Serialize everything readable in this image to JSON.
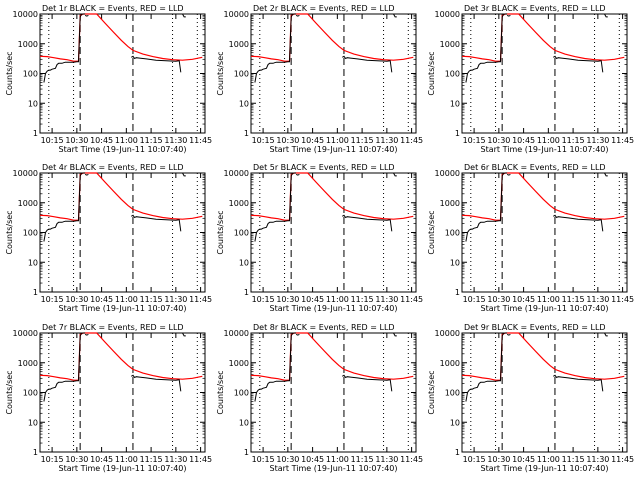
{
  "chart_data": {
    "type": "line",
    "layout": "3x3 grid",
    "title_suffix": "BLACK = Events, RED = LLD",
    "xlabel": "Start Time (19-Jun-11 10:07:40)",
    "ylabel": "Counts/sec",
    "yscale": "log",
    "ylim": [
      1,
      10000
    ],
    "yticks": [
      "1",
      "10",
      "100",
      "1000",
      "10000"
    ],
    "xlim": [
      "10:07:40",
      "11:47:40"
    ],
    "xticks": [
      "10:15",
      "10:30",
      "10:45",
      "11:00",
      "11:15",
      "11:30",
      "11:45"
    ],
    "vertical_lines": [
      {
        "time": "10:13",
        "style": "dotted"
      },
      {
        "time": "10:28",
        "style": "dotted"
      },
      {
        "time": "10:32",
        "style": "dashed"
      },
      {
        "time": "11:04",
        "style": "dashed"
      },
      {
        "time": "11:28",
        "style": "dotted"
      },
      {
        "time": "11:43",
        "style": "dotted"
      }
    ],
    "series_colors": {
      "events": "#000000",
      "lld": "#ff0000"
    },
    "panels": [
      {
        "detector": "1r",
        "title_prefix": "Det 1r"
      },
      {
        "detector": "2r",
        "title_prefix": "Det 2r"
      },
      {
        "detector": "3r",
        "title_prefix": "Det 3r"
      },
      {
        "detector": "4r",
        "title_prefix": "Det 4r"
      },
      {
        "detector": "5r",
        "title_prefix": "Det 5r"
      },
      {
        "detector": "6r",
        "title_prefix": "Det 6r"
      },
      {
        "detector": "7r",
        "title_prefix": "Det 7r"
      },
      {
        "detector": "8r",
        "title_prefix": "Det 8r"
      },
      {
        "detector": "9r",
        "title_prefix": "Det 9r"
      }
    ],
    "series": [
      {
        "key": "lld",
        "x": [
          "10:07:40",
          "10:12",
          "10:16",
          "10:20",
          "10:24",
          "10:28",
          "10:31",
          "10:32",
          "10:34",
          "10:38",
          "10:42",
          "10:47",
          "10:52",
          "10:57",
          "11:01",
          "11:04",
          "11:10",
          "11:16",
          "11:22",
          "11:28",
          "11:34",
          "11:40",
          "11:46"
        ],
        "y": [
          380,
          370,
          340,
          310,
          290,
          260,
          260,
          9000,
          10000,
          10000,
          10000,
          5000,
          2500,
          1300,
          800,
          600,
          450,
          370,
          320,
          290,
          280,
          300,
          350
        ]
      },
      {
        "key": "events",
        "segments": [
          {
            "x": [
              "10:10",
              "10:11",
              "10:12",
              "10:13",
              "10:14",
              "10:15",
              "10:17",
              "10:18",
              "10:19",
              "10:21",
              "10:22",
              "10:23",
              "10:28",
              "10:30",
              "10:31",
              "10:32",
              "10:33",
              "10:35"
            ],
            "y": [
              50,
              100,
              120,
              130,
              130,
              140,
              150,
              200,
              220,
              220,
              230,
              240,
              240,
              250,
              250,
              8000,
              10000,
              10000
            ]
          },
          {
            "x": [
              "10:35",
              "10:36",
              "10:37"
            ],
            "y": [
              9000,
              8500,
              9000
            ]
          },
          {
            "x": [
              "11:03",
              "11:04",
              "11:05",
              "11:06",
              "11:08",
              "11:12",
              "11:18",
              "11:24",
              "11:30",
              "11:32",
              "11:33"
            ],
            "y": [
              350,
              380,
              320,
              340,
              330,
              310,
              280,
              270,
              260,
              270,
              110
            ]
          },
          {
            "x": [
              "11:33",
              "11:34",
              "11:35",
              "11:36"
            ],
            "y": [
              10000,
              10000,
              8000,
              8000
            ]
          }
        ]
      }
    ]
  }
}
